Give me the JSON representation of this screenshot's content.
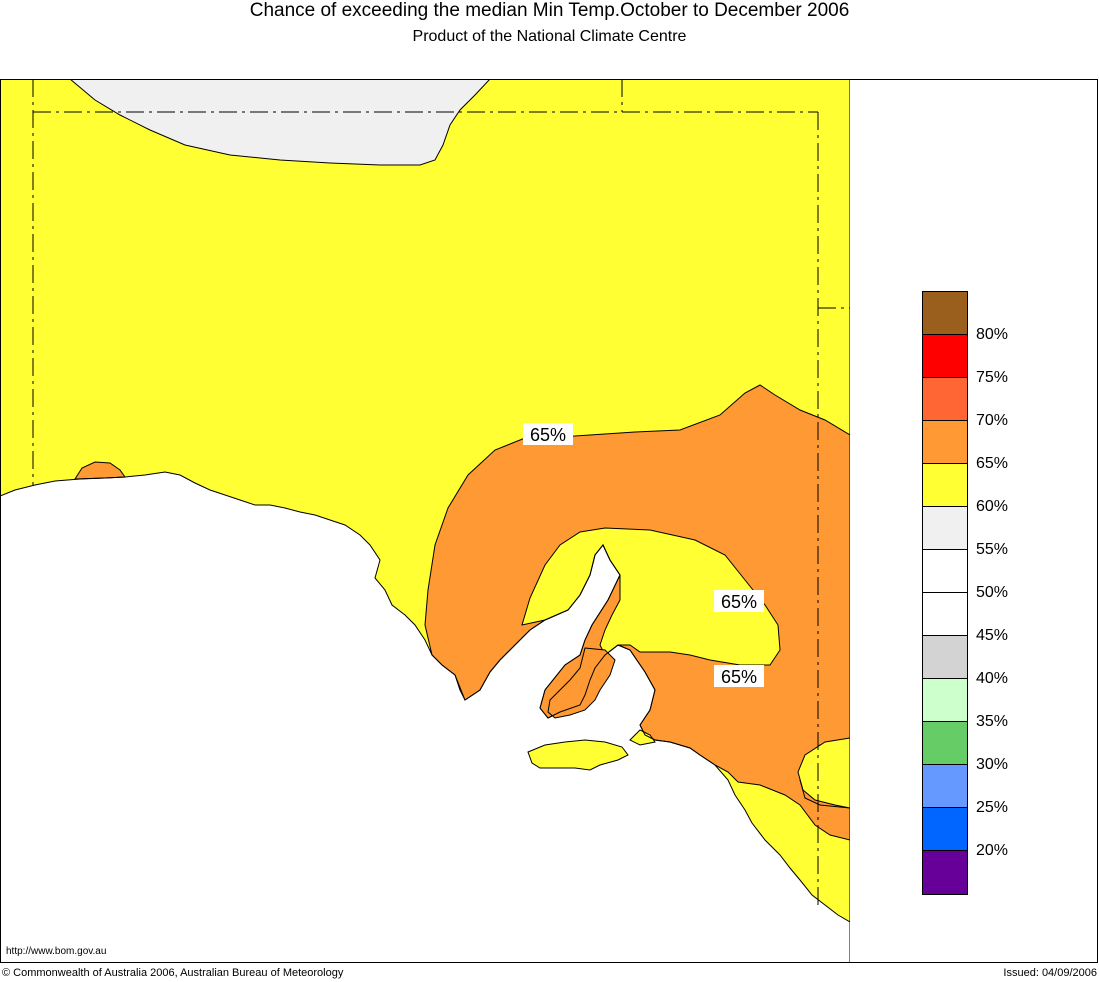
{
  "title": "Chance of exceeding the median Min Temp.October to December 2006",
  "subtitle": "Product of the National Climate Centre",
  "contour_labels": [
    "65%",
    "65%",
    "65%"
  ],
  "legend": {
    "colors": [
      "#9a5f1c",
      "#ff0000",
      "#ff6633",
      "#ff9933",
      "#ffff33",
      "#f0f0f0",
      "#ffffff",
      "#ffffff",
      "#d3d3d3",
      "#ccffcc",
      "#66cc66",
      "#6699ff",
      "#0066ff",
      "#660099"
    ],
    "labels": [
      "80%",
      "75%",
      "70%",
      "65%",
      "60%",
      "55%",
      "50%",
      "45%",
      "40%",
      "35%",
      "30%",
      "25%",
      "20%"
    ]
  },
  "url": "http://www.bom.gov.au",
  "copyright": "© Commonwealth of Australia 2006, Australian Bureau of Meteorology",
  "issued": "Issued: 04/09/2006"
}
